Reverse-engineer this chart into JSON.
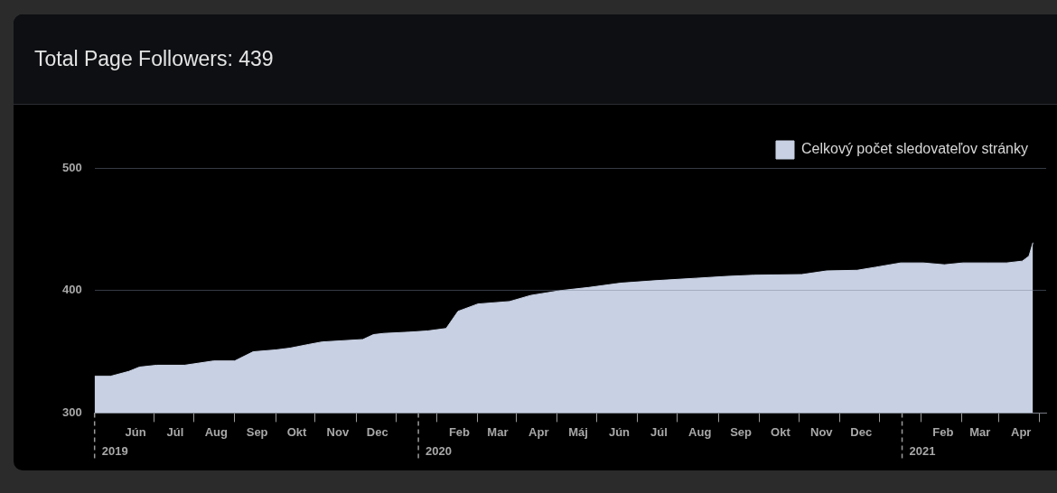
{
  "chart_data": {
    "type": "area",
    "title": "Total Page Followers: 439",
    "legend": "top right",
    "grid": "y",
    "marker": "none",
    "xlim": [
      "2019-05-01",
      "2021-04-20"
    ],
    "ylim": [
      300,
      500
    ],
    "yticks": [
      300,
      400,
      500
    ],
    "xticks": [
      {
        "value": "2019-06-01",
        "label": "Jún"
      },
      {
        "value": "2019-06-15",
        "label": null
      },
      {
        "value": "2019-07-01",
        "label": "Júl"
      },
      {
        "value": "2019-07-15",
        "label": null
      },
      {
        "value": "2019-08-01",
        "label": "Aug"
      },
      {
        "value": "2019-08-15",
        "label": null
      },
      {
        "value": "2019-09-01",
        "label": "Sep"
      },
      {
        "value": "2019-09-15",
        "label": null
      },
      {
        "value": "2019-10-01",
        "label": "Okt"
      },
      {
        "value": "2019-10-15",
        "label": null
      },
      {
        "value": "2019-11-01",
        "label": "Nov"
      },
      {
        "value": "2019-11-15",
        "label": null
      },
      {
        "value": "2019-12-01",
        "label": "Dec"
      },
      {
        "value": "2019-12-15",
        "label": null
      },
      {
        "value": "2020-01-15",
        "label": null
      },
      {
        "value": "2020-02-01",
        "label": "Feb"
      },
      {
        "value": "2020-02-15",
        "label": null
      },
      {
        "value": "2020-03-01",
        "label": "Mar"
      },
      {
        "value": "2020-03-15",
        "label": null
      },
      {
        "value": "2020-04-01",
        "label": "Apr"
      },
      {
        "value": "2020-04-15",
        "label": null
      },
      {
        "value": "2020-05-01",
        "label": "Máj"
      },
      {
        "value": "2020-05-15",
        "label": null
      },
      {
        "value": "2020-06-01",
        "label": "Jún"
      },
      {
        "value": "2020-06-15",
        "label": null
      },
      {
        "value": "2020-07-01",
        "label": "Júl"
      },
      {
        "value": "2020-07-15",
        "label": null
      },
      {
        "value": "2020-08-01",
        "label": "Aug"
      },
      {
        "value": "2020-08-15",
        "label": null
      },
      {
        "value": "2020-09-01",
        "label": "Sep"
      },
      {
        "value": "2020-09-15",
        "label": null
      },
      {
        "value": "2020-10-01",
        "label": "Okt"
      },
      {
        "value": "2020-10-15",
        "label": null
      },
      {
        "value": "2020-11-01",
        "label": "Nov"
      },
      {
        "value": "2020-11-15",
        "label": null
      },
      {
        "value": "2020-12-01",
        "label": "Dec"
      },
      {
        "value": "2020-12-15",
        "label": null
      },
      {
        "value": "2021-01-15",
        "label": null
      },
      {
        "value": "2021-02-01",
        "label": "Feb"
      },
      {
        "value": "2021-02-15",
        "label": null
      },
      {
        "value": "2021-03-01",
        "label": "Mar"
      },
      {
        "value": "2021-03-15",
        "label": null
      },
      {
        "value": "2021-04-01",
        "label": "Apr"
      },
      {
        "value": "2021-04-15",
        "label": null
      }
    ],
    "ref_lines": [
      {
        "axis": "x",
        "value": "2019-05-01",
        "label": "2019",
        "line_style": "dashed",
        "color": "#9a9a9a"
      },
      {
        "axis": "x",
        "value": "2020-01-01",
        "label": "2020",
        "line_style": "dashed",
        "color": "#9a9a9a"
      },
      {
        "axis": "x",
        "value": "2021-01-01",
        "label": "2021",
        "line_style": "dashed",
        "color": "#9a9a9a"
      }
    ],
    "x": [
      "2019-05-01",
      "2019-05-13",
      "2019-05-27",
      "2019-06-04",
      "2019-06-17",
      "2019-07-08",
      "2019-07-30",
      "2019-08-15",
      "2019-08-29",
      "2019-09-15",
      "2019-09-26",
      "2019-10-10",
      "2019-10-20",
      "2019-11-20",
      "2019-11-28",
      "2019-12-06",
      "2019-12-25",
      "2020-01-08",
      "2020-01-22",
      "2020-01-31",
      "2020-02-15",
      "2020-03-10",
      "2020-03-26",
      "2020-04-18",
      "2020-05-09",
      "2020-06-02",
      "2020-06-28",
      "2020-07-29",
      "2020-08-21",
      "2020-09-11",
      "2020-10-17",
      "2020-11-05",
      "2020-11-28",
      "2020-12-12",
      "2020-12-31",
      "2021-01-17",
      "2021-02-02",
      "2021-02-16",
      "2021-03-07",
      "2021-03-21",
      "2021-04-02",
      "2021-04-07",
      "2021-04-10"
    ],
    "series": [
      {
        "name": "Celkový počet sledovateľov stránky",
        "color": "#c8d1e3",
        "values": [
          330,
          330,
          334,
          337.5,
          339,
          339,
          342.5,
          342.5,
          350,
          351.5,
          353,
          356,
          358,
          360,
          364,
          365,
          366,
          367,
          369,
          383,
          389,
          391,
          396,
          400,
          402.5,
          406,
          408,
          410,
          411.5,
          412.5,
          413,
          416,
          416.5,
          419,
          422.5,
          422.5,
          421,
          422.5,
          422.5,
          422.5,
          424,
          428,
          439
        ]
      }
    ]
  }
}
